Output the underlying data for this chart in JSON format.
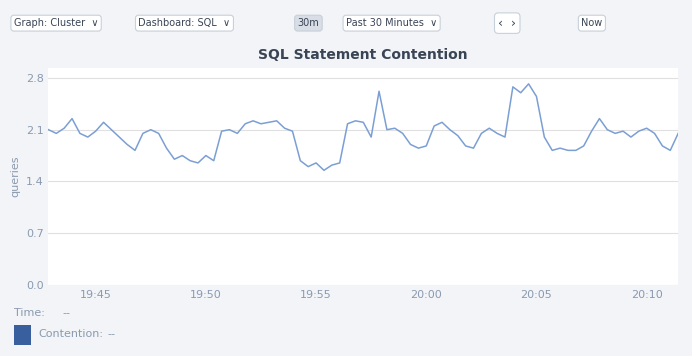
{
  "title": "SQL Statement Contention",
  "ylabel": "queries",
  "yticks": [
    0.0,
    0.7,
    1.4,
    2.1,
    2.8
  ],
  "ylim": [
    0.0,
    2.94
  ],
  "xtick_labels": [
    "19:45",
    "19:50",
    "19:55",
    "20:00",
    "20:05",
    "20:10"
  ],
  "line_color": "#7b9fd4",
  "bg_color": "#ffffff",
  "panel_bg": "#f2f4f7",
  "chart_bg": "#ffffff",
  "grid_color": "#e0e0e0",
  "title_color": "#394455",
  "axis_color": "#8a9ab0",
  "footer_text_color": "#8a9ab0",
  "legend_square_color": "#3a5f9f",
  "x_values": [
    0,
    1,
    2,
    3,
    4,
    5,
    6,
    7,
    8,
    9,
    10,
    11,
    12,
    13,
    14,
    15,
    16,
    17,
    18,
    19,
    20,
    21,
    22,
    23,
    24,
    25,
    26,
    27,
    28,
    29,
    30,
    31,
    32,
    33,
    34,
    35,
    36,
    37,
    38,
    39,
    40,
    41,
    42,
    43,
    44,
    45,
    46,
    47,
    48,
    49,
    50,
    51,
    52,
    53,
    54,
    55,
    56,
    57,
    58,
    59,
    60,
    61,
    62,
    63,
    64,
    65,
    66,
    67,
    68,
    69,
    70,
    71,
    72,
    73,
    74,
    75,
    76,
    77,
    78,
    79,
    80
  ],
  "y_values": [
    2.1,
    2.05,
    2.12,
    2.25,
    2.05,
    2.0,
    2.08,
    2.2,
    2.1,
    2.0,
    1.9,
    1.82,
    2.05,
    2.1,
    2.05,
    1.85,
    1.7,
    1.75,
    1.68,
    1.65,
    1.75,
    1.68,
    2.08,
    2.1,
    2.05,
    2.18,
    2.22,
    2.18,
    2.2,
    2.22,
    2.12,
    2.08,
    1.68,
    1.6,
    1.65,
    1.55,
    1.62,
    1.65,
    2.18,
    2.22,
    2.2,
    2.0,
    2.62,
    2.1,
    2.12,
    2.05,
    1.9,
    1.85,
    1.88,
    2.15,
    2.2,
    2.1,
    2.02,
    1.88,
    1.85,
    2.05,
    2.12,
    2.05,
    2.0,
    2.68,
    2.6,
    2.72,
    2.55,
    2.0,
    1.82,
    1.85,
    1.82,
    1.82,
    1.88,
    2.08,
    2.25,
    2.1,
    2.05,
    2.08,
    2.0,
    2.08,
    2.12,
    2.05,
    1.88,
    1.82,
    2.05
  ],
  "xtick_positions": [
    6,
    20,
    34,
    48,
    62,
    76
  ],
  "toolbar_bg": "#f2f4f7",
  "time_label": "Time:",
  "time_value": "--",
  "contention_label": "Contention:",
  "contention_value": "--"
}
